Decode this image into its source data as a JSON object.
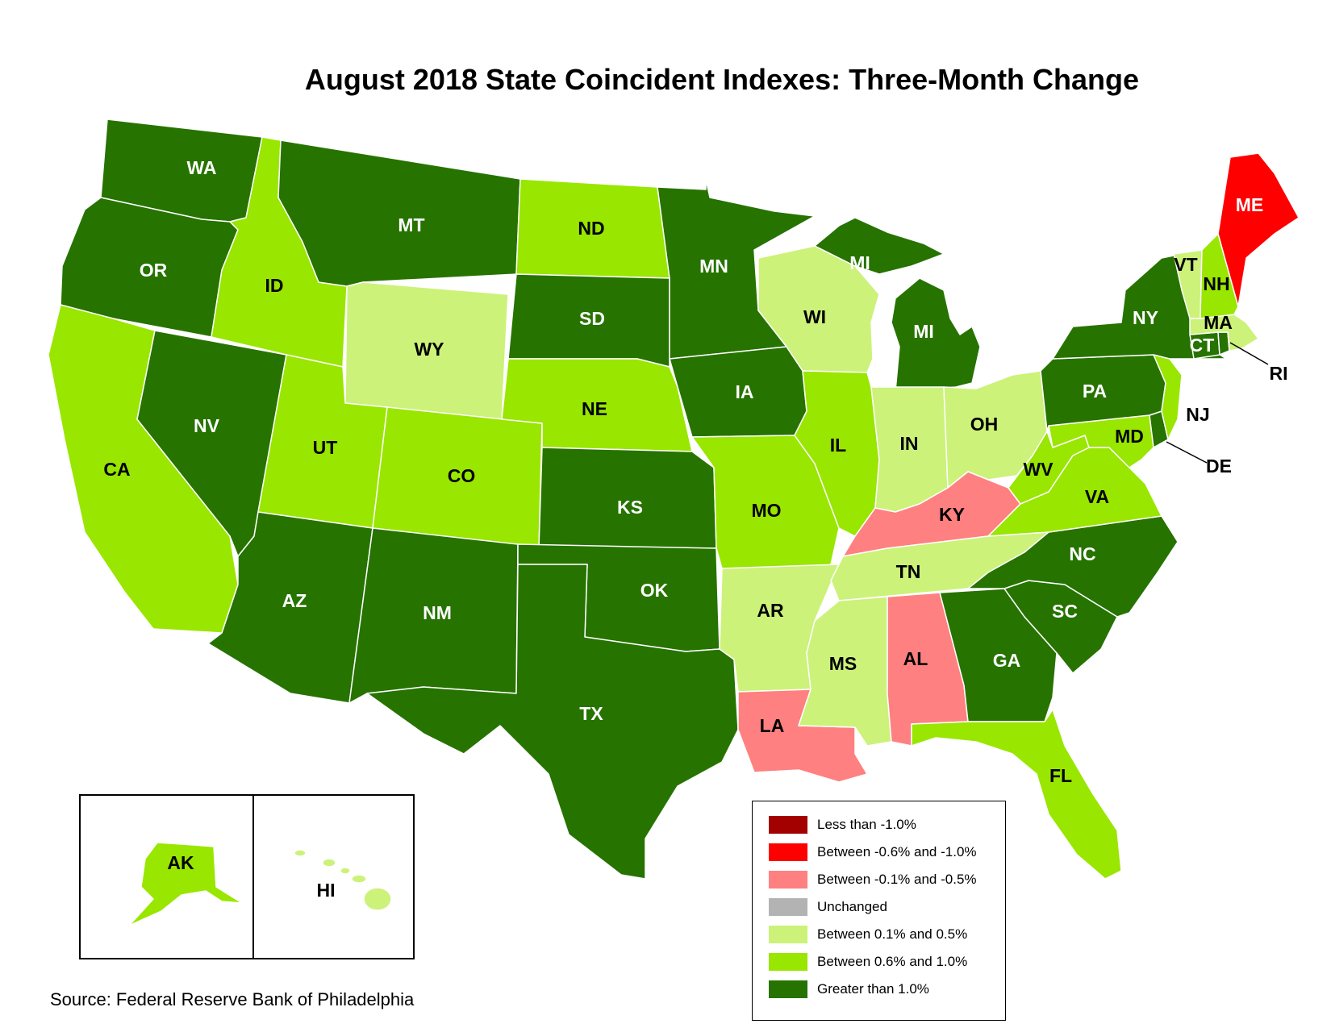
{
  "title": "August 2018 State Coincident Indexes: Three-Month Change",
  "source": "Source: Federal Reserve Bank of Philadelphia",
  "categories": {
    "lt_neg1": "#a30000",
    "neg06_neg1": "#ff0000",
    "neg01_neg05": "#ff8080",
    "unchanged": "#b3b3b3",
    "pos01_05": "#ccf27a",
    "pos06_1": "#99e600",
    "gt1": "#267300"
  },
  "legend": [
    {
      "label": "Less than -1.0%",
      "color": "#a30000"
    },
    {
      "label": "Between -0.6% and -1.0%",
      "color": "#ff0000"
    },
    {
      "label": "Between -0.1% and -0.5%",
      "color": "#ff8080"
    },
    {
      "label": "Unchanged",
      "color": "#b3b3b3"
    },
    {
      "label": "Between 0.1% and 0.5%",
      "color": "#ccf27a"
    },
    {
      "label": "Between 0.6% and 1.0%",
      "color": "#99e600"
    },
    {
      "label": "Greater than 1.0%",
      "color": "#267300"
    }
  ],
  "states": {
    "WA": {
      "label": "WA",
      "cat": "gt1"
    },
    "OR": {
      "label": "OR",
      "cat": "gt1"
    },
    "CA": {
      "label": "CA",
      "cat": "pos06_1"
    },
    "NV": {
      "label": "NV",
      "cat": "gt1"
    },
    "ID": {
      "label": "ID",
      "cat": "pos06_1"
    },
    "MT": {
      "label": "MT",
      "cat": "gt1"
    },
    "WY": {
      "label": "WY",
      "cat": "pos01_05"
    },
    "UT": {
      "label": "UT",
      "cat": "pos06_1"
    },
    "CO": {
      "label": "CO",
      "cat": "pos06_1"
    },
    "AZ": {
      "label": "AZ",
      "cat": "gt1"
    },
    "NM": {
      "label": "NM",
      "cat": "gt1"
    },
    "ND": {
      "label": "ND",
      "cat": "pos06_1"
    },
    "SD": {
      "label": "SD",
      "cat": "gt1"
    },
    "NE": {
      "label": "NE",
      "cat": "pos06_1"
    },
    "KS": {
      "label": "KS",
      "cat": "gt1"
    },
    "OK": {
      "label": "OK",
      "cat": "gt1"
    },
    "TX": {
      "label": "TX",
      "cat": "gt1"
    },
    "MN": {
      "label": "MN",
      "cat": "gt1"
    },
    "IA": {
      "label": "IA",
      "cat": "gt1"
    },
    "MO": {
      "label": "MO",
      "cat": "pos06_1"
    },
    "AR": {
      "label": "AR",
      "cat": "pos01_05"
    },
    "LA": {
      "label": "LA",
      "cat": "neg01_neg05"
    },
    "WI": {
      "label": "WI",
      "cat": "pos01_05"
    },
    "IL": {
      "label": "IL",
      "cat": "pos06_1"
    },
    "MI_UP": {
      "label": "MI",
      "cat": "gt1"
    },
    "MI": {
      "label": "MI",
      "cat": "gt1"
    },
    "IN": {
      "label": "IN",
      "cat": "pos01_05"
    },
    "OH": {
      "label": "OH",
      "cat": "pos01_05"
    },
    "KY": {
      "label": "KY",
      "cat": "neg01_neg05"
    },
    "TN": {
      "label": "TN",
      "cat": "pos01_05"
    },
    "MS": {
      "label": "MS",
      "cat": "pos01_05"
    },
    "AL": {
      "label": "AL",
      "cat": "neg01_neg05"
    },
    "GA": {
      "label": "GA",
      "cat": "gt1"
    },
    "FL": {
      "label": "FL",
      "cat": "pos06_1"
    },
    "SC": {
      "label": "SC",
      "cat": "gt1"
    },
    "NC": {
      "label": "NC",
      "cat": "gt1"
    },
    "VA": {
      "label": "VA",
      "cat": "pos06_1"
    },
    "WV": {
      "label": "WV",
      "cat": "pos06_1"
    },
    "MD": {
      "label": "MD",
      "cat": "pos06_1"
    },
    "DE": {
      "label": "DE",
      "cat": "gt1"
    },
    "NJ": {
      "label": "NJ",
      "cat": "pos06_1"
    },
    "PA": {
      "label": "PA",
      "cat": "gt1"
    },
    "NY": {
      "label": "NY",
      "cat": "gt1"
    },
    "CT": {
      "label": "CT",
      "cat": "gt1"
    },
    "RI": {
      "label": "RI",
      "cat": "gt1"
    },
    "MA": {
      "label": "MA",
      "cat": "pos01_05"
    },
    "VT": {
      "label": "VT",
      "cat": "pos01_05"
    },
    "NH": {
      "label": "NH",
      "cat": "pos06_1"
    },
    "ME": {
      "label": "ME",
      "cat": "neg06_neg1"
    },
    "AK": {
      "label": "AK",
      "cat": "pos06_1"
    },
    "HI": {
      "label": "HI",
      "cat": "pos01_05"
    }
  }
}
